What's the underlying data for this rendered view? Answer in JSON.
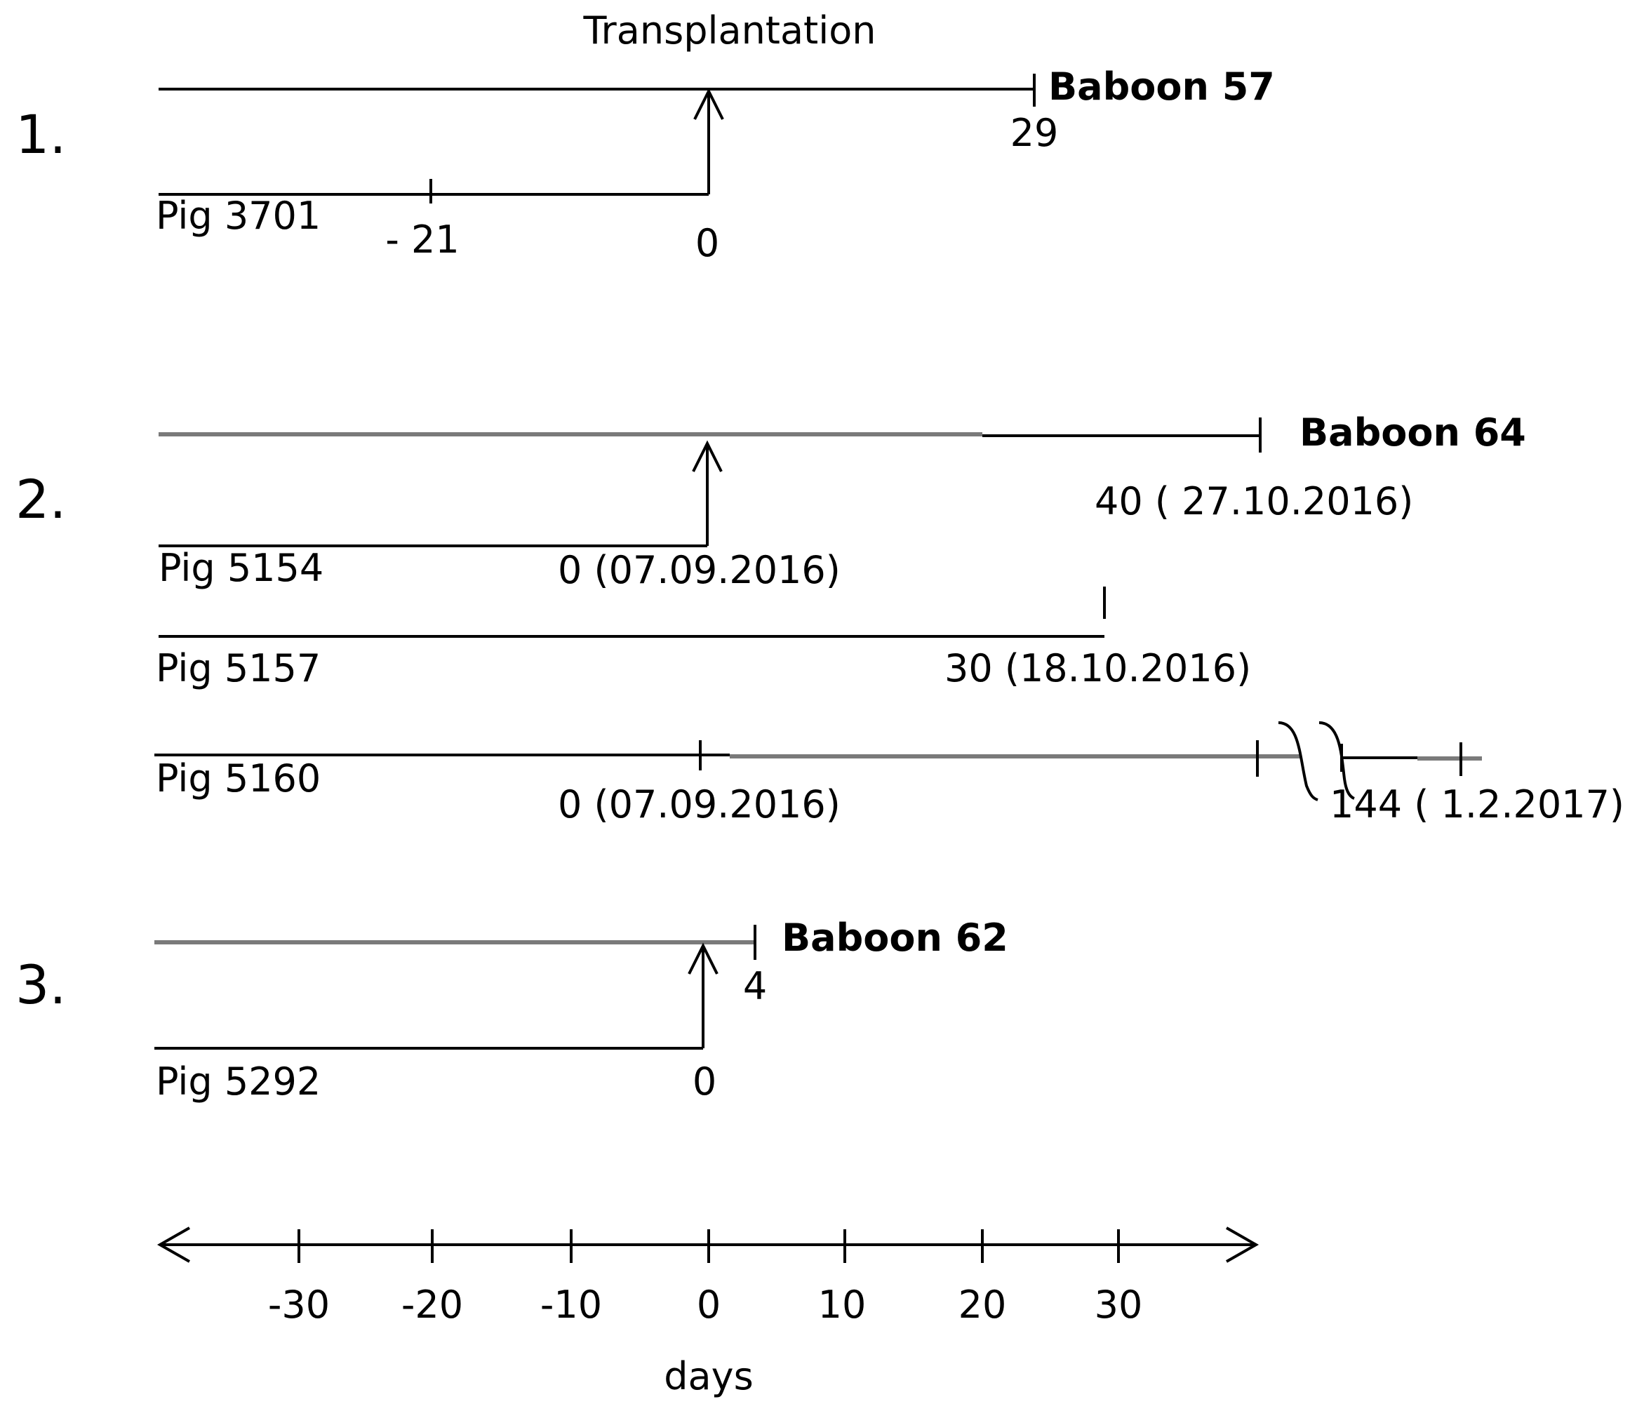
{
  "title": "Transplantation",
  "panels": [
    {
      "number": "1.",
      "baboon": "Baboon 57",
      "baboon_end": "29",
      "pigs": [
        {
          "name": "Pig 3701",
          "marks": [
            "- 21",
            "0"
          ]
        }
      ]
    },
    {
      "number": "2.",
      "baboon": "Baboon 64",
      "baboon_end": "40 ( 27.10.2016)",
      "pigs": [
        {
          "name": "Pig 5154",
          "marks": [
            "0 (07.09.2016)"
          ]
        },
        {
          "name": "Pig 5157",
          "marks": [
            "30 (18.10.2016)"
          ]
        },
        {
          "name": "Pig 5160",
          "marks": [
            "0 (07.09.2016)",
            "144 ( 1.2.2017)"
          ]
        }
      ]
    },
    {
      "number": "3.",
      "baboon": "Baboon 62",
      "baboon_end": "4",
      "pigs": [
        {
          "name": "Pig 5292",
          "marks": [
            "0"
          ]
        }
      ]
    }
  ],
  "axis": {
    "ticks": [
      "-30",
      "-20",
      "-10",
      "0",
      "10",
      "20",
      "30"
    ],
    "label": "days"
  }
}
